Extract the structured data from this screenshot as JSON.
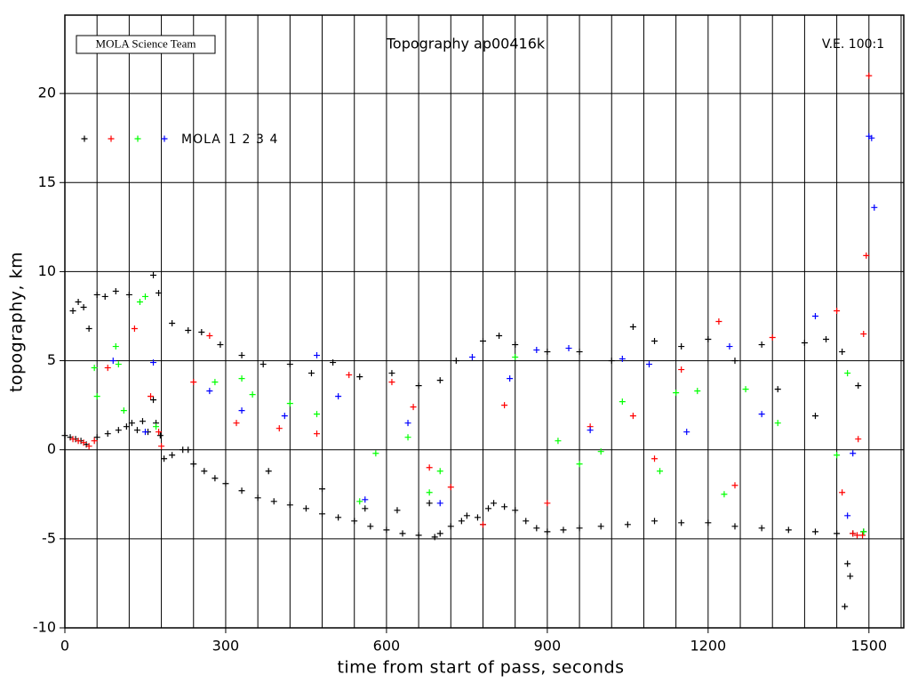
{
  "chart_data": {
    "type": "scatter",
    "title": "Topography ap00416k",
    "credit": "MOLA Science Team",
    "annotation": "V.E. 100:1",
    "x_label": "time from start of pass, seconds",
    "y_label": "topography, km",
    "legend_title": "MOLA",
    "xlim": [
      0,
      1565
    ],
    "ylim": [
      -10,
      24.4
    ],
    "xticks": [
      0,
      300,
      600,
      900,
      1200,
      1500
    ],
    "yticks": [
      -10,
      -5,
      0,
      5,
      10,
      15,
      20
    ],
    "x_grid": [
      60,
      120,
      180,
      240,
      300,
      360,
      420,
      480,
      540,
      600,
      660,
      720,
      780,
      840,
      900,
      960,
      1020,
      1080,
      1140,
      1200,
      1260,
      1320,
      1380,
      1440,
      1500,
      1560
    ],
    "grid": true,
    "series": [
      {
        "name": "1",
        "color": "#000000",
        "x": [
          0,
          10,
          20,
          30,
          40,
          60,
          80,
          100,
          115,
          125,
          135,
          145,
          155,
          165,
          170,
          178,
          185,
          200,
          220,
          230,
          240,
          260,
          280,
          300,
          330,
          360,
          390,
          420,
          450,
          480,
          510,
          540,
          570,
          600,
          630,
          660,
          690,
          700,
          720,
          740,
          750,
          770,
          780,
          790,
          800,
          820,
          840,
          860,
          880,
          900,
          930,
          960,
          1000,
          1050,
          1100,
          1150,
          1200,
          1250,
          1300,
          1350,
          1400,
          1440,
          1470,
          1490,
          15,
          25,
          35,
          45,
          60,
          75,
          95,
          120,
          165,
          175,
          200,
          230,
          255,
          290,
          330,
          370,
          420,
          460,
          500,
          550,
          610,
          660,
          700,
          730,
          780,
          810,
          840,
          900,
          960,
          1020,
          1060,
          1100,
          1150,
          1200,
          1250,
          1300,
          1380,
          1420,
          1450,
          1460,
          1465,
          1455,
          1480,
          1330,
          1400,
          620,
          680,
          560,
          480,
          380
        ],
        "values": [
          0.8,
          0.7,
          0.6,
          0.5,
          0.3,
          0.7,
          0.9,
          1.1,
          1.3,
          1.5,
          1.1,
          1.6,
          1.0,
          2.8,
          1.5,
          0.8,
          -0.5,
          -0.3,
          0.0,
          0.0,
          -0.8,
          -1.2,
          -1.6,
          -1.9,
          -2.3,
          -2.7,
          -2.9,
          -3.1,
          -3.3,
          -3.6,
          -3.8,
          -4.0,
          -4.3,
          -4.5,
          -4.7,
          -4.8,
          -4.9,
          -4.7,
          -4.3,
          -4.0,
          -3.7,
          -3.8,
          -4.2,
          -3.3,
          -3.0,
          -3.2,
          -3.4,
          -4.0,
          -4.4,
          -4.6,
          -4.5,
          -4.4,
          -4.3,
          -4.2,
          -4.0,
          -4.1,
          -4.1,
          -4.3,
          -4.4,
          -4.5,
          -4.6,
          -4.7,
          -4.7,
          -4.6,
          7.8,
          8.3,
          8.0,
          6.8,
          8.7,
          8.6,
          8.9,
          8.7,
          9.8,
          8.8,
          7.1,
          6.7,
          6.6,
          5.9,
          5.3,
          4.8,
          4.8,
          4.3,
          4.9,
          4.1,
          4.3,
          3.6,
          3.9,
          5.0,
          6.1,
          6.4,
          5.9,
          5.5,
          5.5,
          5.0,
          6.9,
          6.1,
          5.8,
          6.2,
          5.0,
          5.9,
          6.0,
          6.2,
          5.5,
          -6.4,
          -7.1,
          -8.8,
          3.6,
          3.4,
          1.9,
          -3.4,
          -3.0,
          -3.3,
          -2.2,
          -1.2
        ]
      },
      {
        "name": "2",
        "color": "#ff0000",
        "x": [
          15,
          25,
          35,
          45,
          55,
          80,
          130,
          160,
          175,
          180,
          240,
          270,
          320,
          400,
          470,
          530,
          610,
          650,
          680,
          720,
          780,
          820,
          900,
          980,
          1060,
          1100,
          1150,
          1220,
          1250,
          1320,
          1440,
          1450,
          1480,
          1490,
          1495,
          1500,
          1488,
          1470,
          1478
        ],
        "values": [
          0.6,
          0.5,
          0.4,
          0.2,
          0.5,
          4.6,
          6.8,
          3.0,
          1.0,
          0.2,
          3.8,
          6.4,
          1.5,
          1.2,
          0.9,
          4.2,
          3.8,
          2.4,
          -1.0,
          -2.1,
          -4.2,
          2.5,
          -3.0,
          1.3,
          1.9,
          -0.5,
          4.5,
          7.2,
          -2.0,
          6.3,
          7.8,
          -2.4,
          0.6,
          6.5,
          10.9,
          21.0,
          -4.8,
          -4.7,
          -4.8
        ]
      },
      {
        "name": "3",
        "color": "#00ff00",
        "x": [
          55,
          60,
          95,
          100,
          110,
          140,
          150,
          170,
          280,
          330,
          350,
          420,
          470,
          550,
          580,
          640,
          680,
          700,
          840,
          920,
          960,
          1000,
          1040,
          1110,
          1140,
          1180,
          1230,
          1270,
          1330,
          1440,
          1460,
          1490
        ],
        "values": [
          4.6,
          3.0,
          5.8,
          4.8,
          2.2,
          8.3,
          8.6,
          1.3,
          3.8,
          4.0,
          3.1,
          2.6,
          2.0,
          -2.9,
          -0.2,
          0.7,
          -2.4,
          -1.2,
          5.2,
          0.5,
          -0.8,
          -0.1,
          2.7,
          -1.2,
          3.2,
          3.3,
          -2.5,
          3.4,
          1.5,
          -0.3,
          4.3,
          -4.6
        ]
      },
      {
        "name": "4",
        "color": "#0000ff",
        "x": [
          90,
          150,
          165,
          270,
          330,
          410,
          470,
          510,
          560,
          640,
          700,
          760,
          830,
          880,
          940,
          980,
          1040,
          1090,
          1160,
          1240,
          1300,
          1400,
          1470,
          1500,
          1505,
          1510,
          1460
        ],
        "values": [
          5.0,
          1.0,
          4.9,
          3.3,
          2.2,
          1.9,
          5.3,
          3.0,
          -2.8,
          1.5,
          -3.0,
          5.2,
          4.0,
          5.6,
          5.7,
          1.1,
          5.1,
          4.8,
          1.0,
          5.8,
          2.0,
          7.5,
          -0.2,
          17.6,
          17.5,
          13.6,
          -3.7
        ]
      }
    ]
  }
}
